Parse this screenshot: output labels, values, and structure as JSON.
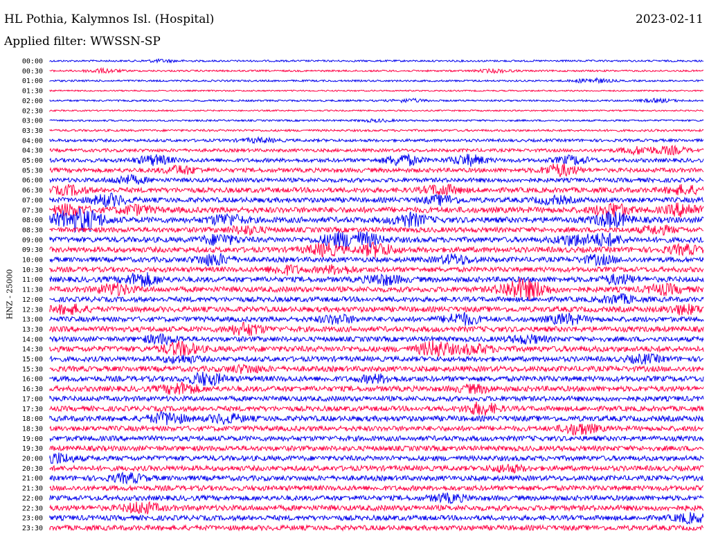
{
  "header": {
    "station": "HL Pothia, Kalymnos Isl. (Hospital)",
    "date": "2023-02-11",
    "filter_text": "Applied filter: WWSSN-SP"
  },
  "chart_data": {
    "type": "line",
    "title": "HL Pothia, Kalymnos Isl. (Hospital)",
    "subtitle": "Applied filter: WWSSN-SP",
    "ylabel": "HNZ - 25000",
    "colors": [
      "#0000ee",
      "#ff0044"
    ],
    "rows": [
      {
        "time": "00:00",
        "amp": 0.25,
        "bursts": [
          [
            0.17,
            0.3
          ]
        ]
      },
      {
        "time": "00:30",
        "amp": 0.25,
        "bursts": [
          [
            0.08,
            0.5
          ],
          [
            0.68,
            0.4
          ]
        ]
      },
      {
        "time": "01:00",
        "amp": 0.25,
        "bursts": [
          [
            0.83,
            0.6
          ]
        ]
      },
      {
        "time": "01:30",
        "amp": 0.2,
        "bursts": []
      },
      {
        "time": "02:00",
        "amp": 0.25,
        "bursts": [
          [
            0.55,
            0.4
          ],
          [
            0.93,
            0.4
          ]
        ]
      },
      {
        "time": "02:30",
        "amp": 0.2,
        "bursts": []
      },
      {
        "time": "03:00",
        "amp": 0.25,
        "bursts": [
          [
            0.5,
            0.3
          ]
        ]
      },
      {
        "time": "03:30",
        "amp": 0.3,
        "bursts": []
      },
      {
        "time": "04:00",
        "amp": 0.4,
        "bursts": [
          [
            0.32,
            0.5
          ]
        ]
      },
      {
        "time": "04:30",
        "amp": 0.45,
        "bursts": [
          [
            0.9,
            0.9
          ],
          [
            0.95,
            0.9
          ]
        ]
      },
      {
        "time": "05:00",
        "amp": 0.55,
        "bursts": [
          [
            0.16,
            1.2
          ],
          [
            0.54,
            1.4
          ],
          [
            0.64,
            1.3
          ],
          [
            0.8,
            1.0
          ]
        ]
      },
      {
        "time": "05:30",
        "amp": 0.6,
        "bursts": [
          [
            0.2,
            1.0
          ],
          [
            0.78,
            1.5
          ]
        ]
      },
      {
        "time": "06:00",
        "amp": 0.6,
        "bursts": [
          [
            0.12,
            1.0
          ]
        ]
      },
      {
        "time": "06:30",
        "amp": 0.7,
        "bursts": [
          [
            0.03,
            1.0
          ],
          [
            0.6,
            1.2
          ],
          [
            0.97,
            1.0
          ]
        ]
      },
      {
        "time": "07:00",
        "amp": 0.7,
        "bursts": [
          [
            0.09,
            1.4
          ],
          [
            0.6,
            1.0
          ],
          [
            0.77,
            0.8
          ]
        ]
      },
      {
        "time": "07:30",
        "amp": 0.8,
        "bursts": [
          [
            0.03,
            1.3
          ],
          [
            0.13,
            1.0
          ],
          [
            0.86,
            1.6
          ],
          [
            0.97,
            1.5
          ]
        ]
      },
      {
        "time": "08:00",
        "amp": 0.8,
        "bursts": [
          [
            0.03,
            2.0
          ],
          [
            0.06,
            2.0
          ],
          [
            0.27,
            1.3
          ],
          [
            0.55,
            1.5
          ],
          [
            0.86,
            1.8
          ]
        ]
      },
      {
        "time": "08:30",
        "amp": 0.7,
        "bursts": [
          [
            0.3,
            0.9
          ],
          [
            0.93,
            0.9
          ]
        ]
      },
      {
        "time": "09:00",
        "amp": 0.75,
        "bursts": [
          [
            0.26,
            1.2
          ],
          [
            0.44,
            1.6
          ],
          [
            0.48,
            1.6
          ],
          [
            0.8,
            1.2
          ],
          [
            0.85,
            1.4
          ]
        ]
      },
      {
        "time": "09:30",
        "amp": 0.75,
        "bursts": [
          [
            0.42,
            1.4
          ],
          [
            0.5,
            1.6
          ],
          [
            0.97,
            1.0
          ]
        ]
      },
      {
        "time": "10:00",
        "amp": 0.7,
        "bursts": [
          [
            0.25,
            1.4
          ],
          [
            0.62,
            1.1
          ],
          [
            0.84,
            1.0
          ]
        ]
      },
      {
        "time": "10:30",
        "amp": 0.7,
        "bursts": [
          [
            0.36,
            1.0
          ],
          [
            0.44,
            0.9
          ]
        ]
      },
      {
        "time": "11:00",
        "amp": 0.75,
        "bursts": [
          [
            0.14,
            1.6
          ],
          [
            0.51,
            1.2
          ],
          [
            0.87,
            1.0
          ]
        ]
      },
      {
        "time": "11:30",
        "amp": 0.75,
        "bursts": [
          [
            0.1,
            1.3
          ],
          [
            0.71,
            1.8
          ],
          [
            0.74,
            1.6
          ],
          [
            0.94,
            1.1
          ]
        ]
      },
      {
        "time": "12:00",
        "amp": 0.7,
        "bursts": [
          [
            0.87,
            1.0
          ]
        ]
      },
      {
        "time": "12:30",
        "amp": 0.75,
        "bursts": [
          [
            0.03,
            1.0
          ],
          [
            0.97,
            1.0
          ]
        ]
      },
      {
        "time": "13:00",
        "amp": 0.7,
        "bursts": [
          [
            0.44,
            1.0
          ],
          [
            0.63,
            1.4
          ],
          [
            0.79,
            1.2
          ]
        ]
      },
      {
        "time": "13:30",
        "amp": 0.75,
        "bursts": [
          [
            0.3,
            1.4
          ]
        ]
      },
      {
        "time": "14:00",
        "amp": 0.7,
        "bursts": [
          [
            0.17,
            1.0
          ],
          [
            0.73,
            0.9
          ]
        ]
      },
      {
        "time": "14:30",
        "amp": 0.8,
        "bursts": [
          [
            0.2,
            1.6
          ],
          [
            0.59,
            1.8
          ],
          [
            0.65,
            1.0
          ]
        ]
      },
      {
        "time": "15:00",
        "amp": 0.7,
        "bursts": [
          [
            0.2,
            0.8
          ],
          [
            0.91,
            0.9
          ]
        ]
      },
      {
        "time": "15:30",
        "amp": 0.75,
        "bursts": [
          [
            0.3,
            0.8
          ]
        ]
      },
      {
        "time": "16:00",
        "amp": 0.75,
        "bursts": [
          [
            0.24,
            1.5
          ],
          [
            0.5,
            0.8
          ]
        ]
      },
      {
        "time": "16:30",
        "amp": 0.75,
        "bursts": [
          [
            0.2,
            1.4
          ],
          [
            0.65,
            0.8
          ]
        ]
      },
      {
        "time": "17:00",
        "amp": 0.7,
        "bursts": []
      },
      {
        "time": "17:30",
        "amp": 0.7,
        "bursts": [
          [
            0.66,
            1.4
          ]
        ]
      },
      {
        "time": "18:00",
        "amp": 0.75,
        "bursts": [
          [
            0.18,
            1.4
          ],
          [
            0.27,
            1.0
          ]
        ]
      },
      {
        "time": "18:30",
        "amp": 0.7,
        "bursts": [
          [
            0.81,
            1.4
          ]
        ]
      },
      {
        "time": "19:00",
        "amp": 0.7,
        "bursts": []
      },
      {
        "time": "19:30",
        "amp": 0.7,
        "bursts": []
      },
      {
        "time": "20:00",
        "amp": 0.7,
        "bursts": [
          [
            0.01,
            1.2
          ]
        ]
      },
      {
        "time": "20:30",
        "amp": 0.7,
        "bursts": [
          [
            0.7,
            0.8
          ]
        ]
      },
      {
        "time": "21:00",
        "amp": 0.7,
        "bursts": [
          [
            0.12,
            1.0
          ]
        ]
      },
      {
        "time": "21:30",
        "amp": 0.7,
        "bursts": []
      },
      {
        "time": "22:00",
        "amp": 0.7,
        "bursts": [
          [
            0.61,
            0.9
          ]
        ]
      },
      {
        "time": "22:30",
        "amp": 0.75,
        "bursts": [
          [
            0.14,
            1.3
          ]
        ]
      },
      {
        "time": "23:00",
        "amp": 0.7,
        "bursts": [
          [
            0.98,
            1.0
          ]
        ]
      },
      {
        "time": "23:30",
        "amp": 0.7,
        "bursts": []
      }
    ]
  }
}
